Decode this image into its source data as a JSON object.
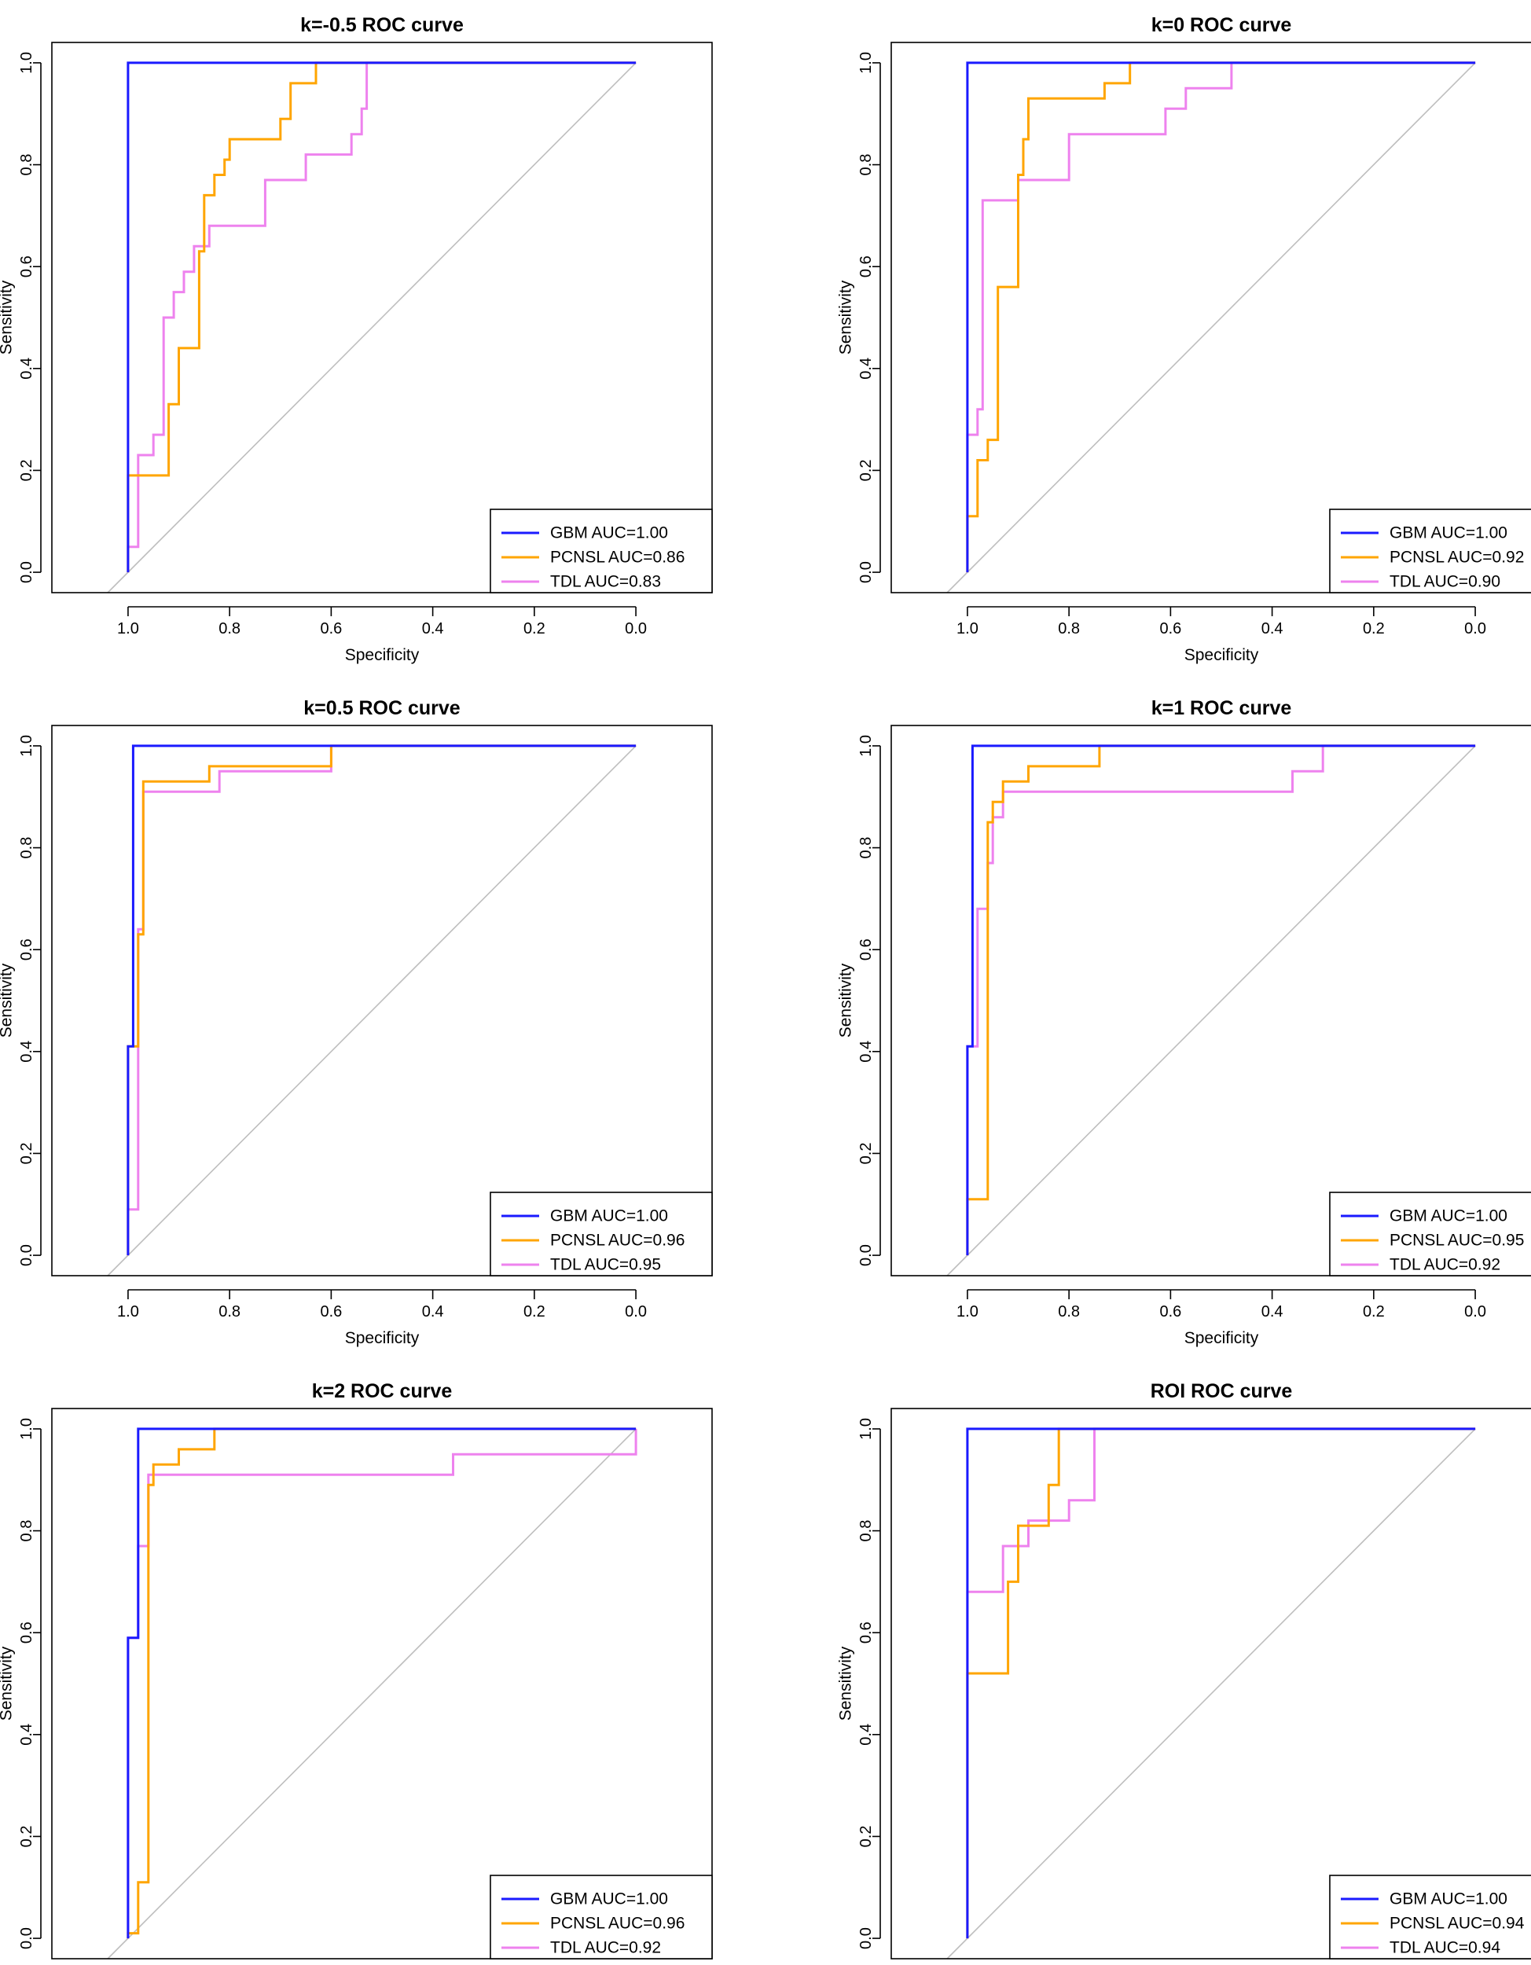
{
  "colors": {
    "GBM": "#1a1aff",
    "PCNSL": "#ffa500",
    "TDL": "#ee82ee",
    "diagonal": "#bebebe"
  },
  "chart_data": [
    {
      "type": "line",
      "title": "k=-0.5 ROC curve",
      "xlabel": "Specificity",
      "ylabel": "Sensitivity",
      "xlim": [
        1.15,
        -0.15
      ],
      "ylim": [
        0,
        1
      ],
      "xticks": [
        "1.0",
        "0.8",
        "0.6",
        "0.4",
        "0.2",
        "0.0"
      ],
      "yticks": [
        "0.0",
        "0.2",
        "0.4",
        "0.6",
        "0.8",
        "1.0"
      ],
      "legend": {
        "position": "bottom-right",
        "entries": [
          "GBM AUC=1.00",
          "PCNSL AUC=0.86",
          "TDL AUC=0.83"
        ]
      },
      "series": [
        {
          "name": "GBM",
          "points": [
            [
              1,
              0
            ],
            [
              1,
              1
            ],
            [
              0,
              1
            ]
          ]
        },
        {
          "name": "PCNSL",
          "points": [
            [
              1,
              0
            ],
            [
              1,
              0.19
            ],
            [
              0.92,
              0.19
            ],
            [
              0.92,
              0.33
            ],
            [
              0.9,
              0.33
            ],
            [
              0.9,
              0.44
            ],
            [
              0.86,
              0.44
            ],
            [
              0.86,
              0.63
            ],
            [
              0.85,
              0.63
            ],
            [
              0.85,
              0.74
            ],
            [
              0.83,
              0.74
            ],
            [
              0.83,
              0.78
            ],
            [
              0.81,
              0.78
            ],
            [
              0.81,
              0.81
            ],
            [
              0.8,
              0.81
            ],
            [
              0.8,
              0.85
            ],
            [
              0.7,
              0.85
            ],
            [
              0.7,
              0.89
            ],
            [
              0.68,
              0.89
            ],
            [
              0.68,
              0.96
            ],
            [
              0.63,
              0.96
            ],
            [
              0.63,
              1
            ],
            [
              0,
              1
            ]
          ]
        },
        {
          "name": "TDL",
          "points": [
            [
              1,
              0
            ],
            [
              1,
              0.05
            ],
            [
              0.98,
              0.05
            ],
            [
              0.98,
              0.23
            ],
            [
              0.95,
              0.23
            ],
            [
              0.95,
              0.27
            ],
            [
              0.93,
              0.27
            ],
            [
              0.93,
              0.5
            ],
            [
              0.91,
              0.5
            ],
            [
              0.91,
              0.55
            ],
            [
              0.89,
              0.55
            ],
            [
              0.89,
              0.59
            ],
            [
              0.87,
              0.59
            ],
            [
              0.87,
              0.64
            ],
            [
              0.84,
              0.64
            ],
            [
              0.84,
              0.68
            ],
            [
              0.73,
              0.68
            ],
            [
              0.73,
              0.77
            ],
            [
              0.65,
              0.77
            ],
            [
              0.65,
              0.82
            ],
            [
              0.56,
              0.82
            ],
            [
              0.56,
              0.86
            ],
            [
              0.54,
              0.86
            ],
            [
              0.54,
              0.91
            ],
            [
              0.53,
              0.91
            ],
            [
              0.53,
              1
            ],
            [
              0,
              1
            ]
          ]
        }
      ]
    },
    {
      "type": "line",
      "title": "k=0 ROC curve",
      "xlabel": "Specificity",
      "ylabel": "Sensitivity",
      "xlim": [
        1.15,
        -0.15
      ],
      "ylim": [
        0,
        1
      ],
      "xticks": [
        "1.0",
        "0.8",
        "0.6",
        "0.4",
        "0.2",
        "0.0"
      ],
      "yticks": [
        "0.0",
        "0.2",
        "0.4",
        "0.6",
        "0.8",
        "1.0"
      ],
      "legend": {
        "position": "bottom-right",
        "entries": [
          "GBM AUC=1.00",
          "PCNSL AUC=0.92",
          "TDL AUC=0.90"
        ]
      },
      "series": [
        {
          "name": "GBM",
          "points": [
            [
              1,
              0
            ],
            [
              1,
              1
            ],
            [
              0,
              1
            ]
          ]
        },
        {
          "name": "PCNSL",
          "points": [
            [
              1,
              0
            ],
            [
              1,
              0.11
            ],
            [
              0.98,
              0.11
            ],
            [
              0.98,
              0.22
            ],
            [
              0.96,
              0.22
            ],
            [
              0.96,
              0.26
            ],
            [
              0.94,
              0.26
            ],
            [
              0.94,
              0.56
            ],
            [
              0.9,
              0.56
            ],
            [
              0.9,
              0.78
            ],
            [
              0.89,
              0.78
            ],
            [
              0.89,
              0.85
            ],
            [
              0.88,
              0.85
            ],
            [
              0.88,
              0.93
            ],
            [
              0.73,
              0.93
            ],
            [
              0.73,
              0.96
            ],
            [
              0.68,
              0.96
            ],
            [
              0.68,
              1
            ],
            [
              0,
              1
            ]
          ]
        },
        {
          "name": "TDL",
          "points": [
            [
              1,
              0
            ],
            [
              1,
              0.27
            ],
            [
              0.98,
              0.27
            ],
            [
              0.98,
              0.32
            ],
            [
              0.97,
              0.32
            ],
            [
              0.97,
              0.73
            ],
            [
              0.9,
              0.73
            ],
            [
              0.9,
              0.77
            ],
            [
              0.8,
              0.77
            ],
            [
              0.8,
              0.86
            ],
            [
              0.61,
              0.86
            ],
            [
              0.61,
              0.91
            ],
            [
              0.57,
              0.91
            ],
            [
              0.57,
              0.95
            ],
            [
              0.48,
              0.95
            ],
            [
              0.48,
              1
            ],
            [
              0,
              1
            ]
          ]
        }
      ]
    },
    {
      "type": "line",
      "title": "k=0.5 ROC curve",
      "xlabel": "Specificity",
      "ylabel": "Sensitivity",
      "xlim": [
        1.15,
        -0.15
      ],
      "ylim": [
        0,
        1
      ],
      "xticks": [
        "1.0",
        "0.8",
        "0.6",
        "0.4",
        "0.2",
        "0.0"
      ],
      "yticks": [
        "0.0",
        "0.2",
        "0.4",
        "0.6",
        "0.8",
        "1.0"
      ],
      "legend": {
        "position": "bottom-right",
        "entries": [
          "GBM AUC=1.00",
          "PCNSL AUC=0.96",
          "TDL AUC=0.95"
        ]
      },
      "series": [
        {
          "name": "GBM",
          "points": [
            [
              1,
              0
            ],
            [
              1,
              0.41
            ],
            [
              0.99,
              0.41
            ],
            [
              0.99,
              1
            ],
            [
              0,
              1
            ]
          ]
        },
        {
          "name": "PCNSL",
          "points": [
            [
              1,
              0
            ],
            [
              1,
              0.41
            ],
            [
              0.98,
              0.41
            ],
            [
              0.98,
              0.63
            ],
            [
              0.97,
              0.63
            ],
            [
              0.97,
              0.93
            ],
            [
              0.84,
              0.93
            ],
            [
              0.84,
              0.96
            ],
            [
              0.6,
              0.96
            ],
            [
              0.6,
              1
            ],
            [
              0,
              1
            ]
          ]
        },
        {
          "name": "TDL",
          "points": [
            [
              1,
              0
            ],
            [
              1,
              0.09
            ],
            [
              0.98,
              0.09
            ],
            [
              0.98,
              0.64
            ],
            [
              0.97,
              0.64
            ],
            [
              0.97,
              0.91
            ],
            [
              0.82,
              0.91
            ],
            [
              0.82,
              0.95
            ],
            [
              0.6,
              0.95
            ],
            [
              0.6,
              1
            ],
            [
              0,
              1
            ]
          ]
        }
      ]
    },
    {
      "type": "line",
      "title": "k=1 ROC curve",
      "xlabel": "Specificity",
      "ylabel": "Sensitivity",
      "xlim": [
        1.15,
        -0.15
      ],
      "ylim": [
        0,
        1
      ],
      "xticks": [
        "1.0",
        "0.8",
        "0.6",
        "0.4",
        "0.2",
        "0.0"
      ],
      "yticks": [
        "0.0",
        "0.2",
        "0.4",
        "0.6",
        "0.8",
        "1.0"
      ],
      "legend": {
        "position": "bottom-right",
        "entries": [
          "GBM AUC=1.00",
          "PCNSL AUC=0.95",
          "TDL AUC=0.92"
        ]
      },
      "series": [
        {
          "name": "GBM",
          "points": [
            [
              1,
              0
            ],
            [
              1,
              0.41
            ],
            [
              0.99,
              0.41
            ],
            [
              0.99,
              1
            ],
            [
              0.74,
              1
            ],
            [
              0,
              1
            ]
          ]
        },
        {
          "name": "PCNSL",
          "points": [
            [
              1,
              0
            ],
            [
              1,
              0.11
            ],
            [
              0.96,
              0.11
            ],
            [
              0.96,
              0.85
            ],
            [
              0.95,
              0.85
            ],
            [
              0.95,
              0.89
            ],
            [
              0.93,
              0.89
            ],
            [
              0.93,
              0.93
            ],
            [
              0.88,
              0.93
            ],
            [
              0.88,
              0.96
            ],
            [
              0.74,
              0.96
            ],
            [
              0.74,
              1
            ],
            [
              0,
              1
            ]
          ]
        },
        {
          "name": "TDL",
          "points": [
            [
              1,
              0
            ],
            [
              1,
              0.41
            ],
            [
              0.98,
              0.41
            ],
            [
              0.98,
              0.68
            ],
            [
              0.96,
              0.68
            ],
            [
              0.96,
              0.77
            ],
            [
              0.95,
              0.77
            ],
            [
              0.95,
              0.86
            ],
            [
              0.93,
              0.86
            ],
            [
              0.93,
              0.91
            ],
            [
              0.36,
              0.91
            ],
            [
              0.36,
              0.95
            ],
            [
              0.3,
              0.95
            ],
            [
              0.3,
              1
            ],
            [
              0,
              1
            ]
          ]
        }
      ]
    },
    {
      "type": "line",
      "title": "k=2 ROC curve",
      "xlabel": "Specificity",
      "ylabel": "Sensitivity",
      "xlim": [
        1.15,
        -0.15
      ],
      "ylim": [
        0,
        1
      ],
      "xticks": [
        "1.0",
        "0.8",
        "0.6",
        "0.4",
        "0.2",
        "0.0"
      ],
      "yticks": [
        "0.0",
        "0.2",
        "0.4",
        "0.6",
        "0.8",
        "1.0"
      ],
      "legend": {
        "position": "bottom-right",
        "entries": [
          "GBM AUC=1.00",
          "PCNSL AUC=0.96",
          "TDL AUC=0.92"
        ]
      },
      "series": [
        {
          "name": "GBM",
          "points": [
            [
              1,
              0
            ],
            [
              1,
              0.59
            ],
            [
              0.98,
              0.59
            ],
            [
              0.98,
              1
            ],
            [
              0.83,
              1
            ],
            [
              0,
              1
            ]
          ]
        },
        {
          "name": "PCNSL",
          "points": [
            [
              1,
              0
            ],
            [
              1,
              0.01
            ],
            [
              0.98,
              0.01
            ],
            [
              0.98,
              0.11
            ],
            [
              0.96,
              0.11
            ],
            [
              0.96,
              0.89
            ],
            [
              0.95,
              0.89
            ],
            [
              0.95,
              0.93
            ],
            [
              0.9,
              0.93
            ],
            [
              0.9,
              0.96
            ],
            [
              0.83,
              0.96
            ],
            [
              0.83,
              1
            ],
            [
              0,
              1
            ]
          ]
        },
        {
          "name": "TDL",
          "points": [
            [
              1,
              0
            ],
            [
              1,
              0.59
            ],
            [
              0.98,
              0.59
            ],
            [
              0.98,
              0.77
            ],
            [
              0.96,
              0.77
            ],
            [
              0.96,
              0.91
            ],
            [
              0.36,
              0.91
            ],
            [
              0.36,
              0.95
            ],
            [
              0,
              0.95
            ],
            [
              0,
              1
            ]
          ]
        }
      ]
    },
    {
      "type": "line",
      "title": "ROI ROC curve",
      "xlabel": "Specificity",
      "ylabel": "Sensitivity",
      "xlim": [
        1.15,
        -0.15
      ],
      "ylim": [
        0,
        1
      ],
      "xticks": [
        "1.0",
        "0.8",
        "0.6",
        "0.4",
        "0.2",
        "0.0"
      ],
      "yticks": [
        "0.0",
        "0.2",
        "0.4",
        "0.6",
        "0.8",
        "1.0"
      ],
      "legend": {
        "position": "bottom-right",
        "entries": [
          "GBM AUC=1.00",
          "PCNSL AUC=0.94",
          "TDL AUC=0.94"
        ]
      },
      "series": [
        {
          "name": "GBM",
          "points": [
            [
              1,
              0
            ],
            [
              1,
              0.68
            ],
            [
              1,
              1
            ],
            [
              0.83,
              1
            ],
            [
              0,
              1
            ]
          ]
        },
        {
          "name": "PCNSL",
          "points": [
            [
              1,
              0
            ],
            [
              1,
              0.52
            ],
            [
              0.92,
              0.52
            ],
            [
              0.92,
              0.7
            ],
            [
              0.9,
              0.7
            ],
            [
              0.9,
              0.81
            ],
            [
              0.84,
              0.81
            ],
            [
              0.84,
              0.89
            ],
            [
              0.82,
              0.89
            ],
            [
              0.82,
              1
            ],
            [
              0,
              1
            ]
          ]
        },
        {
          "name": "TDL",
          "points": [
            [
              1,
              0
            ],
            [
              1,
              0.68
            ],
            [
              0.93,
              0.68
            ],
            [
              0.93,
              0.77
            ],
            [
              0.88,
              0.77
            ],
            [
              0.88,
              0.82
            ],
            [
              0.8,
              0.82
            ],
            [
              0.8,
              0.86
            ],
            [
              0.75,
              0.86
            ],
            [
              0.75,
              1
            ],
            [
              0,
              1
            ]
          ]
        }
      ]
    }
  ]
}
